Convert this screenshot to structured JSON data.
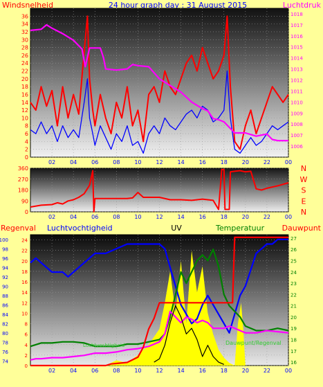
{
  "header": {
    "title": "24 hour graph day : 31 August 2015",
    "left_label": "Windsnelheid",
    "right_label": "Luchtdruk"
  },
  "panel3_labels": {
    "rain": "Regenval",
    "humidity": "Luchtvochtigheid",
    "uv": "UV",
    "temperature": "Temperatuur",
    "dewpoint": "Dauwpunt"
  },
  "overlay_labels": {
    "left": "Luchtvochtigheid",
    "right": "Dauwpunt/Regenval"
  },
  "colors": {
    "background": "#ffff99",
    "wind": "#ff0000",
    "gust_avg": "#0000ff",
    "pressure": "#ff00ff",
    "direction": "#ff0000",
    "humidity": "#0000ff",
    "temperature": "#008000",
    "dewpoint": "#ff00ff",
    "rain": "#ff0000",
    "uv": "#ffff00"
  },
  "chart_data": [
    {
      "type": "line",
      "x_ticks": [
        "02",
        "04",
        "06",
        "08",
        "10",
        "12",
        "14",
        "16",
        "18",
        "20",
        "22",
        "00"
      ],
      "left_axis": {
        "ylim": [
          0,
          38
        ],
        "ticks": [
          0,
          2,
          4,
          6,
          8,
          10,
          12,
          14,
          16,
          18,
          20,
          22,
          24,
          26,
          28,
          30,
          32,
          34,
          36
        ]
      },
      "right_axis": {
        "ylim": [
          1005,
          1018.5
        ],
        "ticks": [
          1006,
          1007,
          1008,
          1009,
          1010,
          1011,
          1012,
          1013,
          1014,
          1015,
          1016,
          1017,
          1018
        ]
      },
      "series": [
        {
          "key": "wind",
          "axis": "left",
          "x": [
            0,
            0.5,
            1,
            1.5,
            2,
            2.5,
            3,
            3.5,
            4,
            4.5,
            5,
            5.3,
            5.5,
            5.8,
            6,
            6.5,
            7,
            7.5,
            8,
            8.5,
            9,
            9.5,
            10,
            10.5,
            11,
            11.5,
            12,
            12.5,
            13,
            13.5,
            14,
            14.5,
            15,
            15.5,
            16,
            16.5,
            17,
            17.5,
            18,
            18.3,
            18.6,
            19,
            19.5,
            20,
            20.5,
            21,
            21.5,
            22,
            22.5,
            23,
            23.5,
            24
          ],
          "y": [
            14,
            12,
            18,
            13,
            17,
            8,
            18,
            10,
            16,
            11,
            27,
            36,
            20,
            12,
            8,
            16,
            10,
            6,
            14,
            10,
            18,
            8,
            12,
            4,
            16,
            18,
            14,
            22,
            18,
            16,
            20,
            24,
            26,
            22,
            28,
            24,
            20,
            22,
            26,
            36,
            18,
            4,
            2,
            8,
            12,
            6,
            10,
            14,
            18,
            16,
            14,
            16
          ]
        },
        {
          "key": "gust_avg",
          "axis": "left",
          "x": [
            0,
            0.5,
            1,
            1.5,
            2,
            2.5,
            3,
            3.5,
            4,
            4.5,
            5,
            5.3,
            5.5,
            5.8,
            6,
            6.5,
            7,
            7.5,
            8,
            8.5,
            9,
            9.5,
            10,
            10.5,
            11,
            11.5,
            12,
            12.5,
            13,
            13.5,
            14,
            14.5,
            15,
            15.5,
            16,
            16.5,
            17,
            17.5,
            18,
            18.3,
            18.6,
            19,
            19.5,
            20,
            20.5,
            21,
            21.5,
            22,
            22.5,
            23,
            23.5,
            24
          ],
          "y": [
            7,
            6,
            9,
            6,
            8,
            4,
            8,
            5,
            7,
            5,
            14,
            20,
            10,
            6,
            3,
            8,
            5,
            2,
            6,
            4,
            8,
            3,
            4,
            1,
            6,
            8,
            6,
            10,
            8,
            7,
            9,
            11,
            12,
            10,
            13,
            12,
            9,
            10,
            12,
            22,
            10,
            2,
            1,
            3,
            5,
            3,
            4,
            6,
            8,
            7,
            8,
            9
          ]
        },
        {
          "key": "pressure",
          "axis": "right",
          "x": [
            0,
            1,
            1.5,
            2,
            3,
            4,
            4.8,
            5.1,
            5.5,
            6.5,
            6.8,
            7,
            8,
            9,
            9.5,
            10,
            11,
            12,
            13,
            14,
            15,
            16,
            16.5,
            17,
            17.5,
            18,
            19,
            20,
            21,
            22,
            22.5,
            23,
            24
          ],
          "y": [
            1016.5,
            1016.6,
            1017,
            1016.7,
            1016.2,
            1015.6,
            1014.8,
            1013.2,
            1014.9,
            1014.9,
            1014,
            1013,
            1012.9,
            1013,
            1013.4,
            1013.3,
            1013.2,
            1012.1,
            1011.5,
            1010.9,
            1010,
            1009.4,
            1009.2,
            1008.5,
            1008.4,
            1008.2,
            1007.2,
            1007.2,
            1006.9,
            1007.1,
            1006.6,
            1006.5,
            1006.5
          ]
        }
      ]
    },
    {
      "type": "line",
      "x_ticks": [
        "02",
        "04",
        "06",
        "08",
        "10",
        "12",
        "14",
        "16",
        "18",
        "20",
        "22",
        "00"
      ],
      "ylim": [
        0,
        360
      ],
      "y_ticks": [
        0,
        90,
        180,
        270,
        360
      ],
      "right_labels": [
        "N",
        "W",
        "S",
        "E",
        "N"
      ],
      "series": [
        {
          "key": "direction",
          "x": [
            0,
            1,
            2,
            2.5,
            3,
            3.5,
            4,
            4.5,
            5,
            5.5,
            5.8,
            5.9,
            6,
            6.5,
            7,
            8,
            9,
            9.5,
            10,
            10.5,
            11,
            12,
            13,
            14,
            15,
            16,
            17,
            17.5,
            17.8,
            18,
            18.1,
            18.5,
            18.6,
            19,
            19.5,
            20,
            20.5,
            21,
            21.5,
            22,
            23,
            24
          ],
          "y": [
            40,
            55,
            60,
            75,
            65,
            90,
            100,
            120,
            150,
            220,
            340,
            0,
            110,
            110,
            110,
            110,
            110,
            115,
            160,
            120,
            120,
            120,
            100,
            100,
            95,
            105,
            95,
            20,
            350,
            350,
            20,
            20,
            330,
            335,
            340,
            330,
            335,
            190,
            180,
            195,
            215,
            240
          ]
        }
      ]
    },
    {
      "type": "line",
      "x_ticks": [
        "02",
        "04",
        "06",
        "08",
        "10",
        "12",
        "14",
        "16",
        "18",
        "20",
        "22",
        "00"
      ],
      "humidity_axis": {
        "ylim": [
          73,
          101
        ],
        "ticks": [
          74,
          76,
          78,
          80,
          82,
          84,
          86,
          88,
          90,
          92,
          94,
          96,
          98,
          100
        ]
      },
      "rain_axis": {
        "ylim": [
          0,
          25
        ],
        "ticks": [
          0,
          2,
          4,
          6,
          8,
          10,
          12,
          14,
          16,
          18,
          20,
          22,
          24
        ]
      },
      "temp_axis": {
        "ylim": [
          15.7,
          27.3
        ],
        "ticks": [
          16,
          17,
          18,
          19,
          20,
          21,
          22,
          23,
          24,
          25,
          26,
          27
        ]
      },
      "series": [
        {
          "key": "uv",
          "axis": "rain",
          "type": "area",
          "x": [
            7,
            8,
            9,
            10,
            11,
            12,
            12.5,
            13,
            13.5,
            14,
            14.5,
            15,
            15.5,
            16,
            16.5,
            17,
            17.5,
            18,
            18.5,
            19,
            19.5,
            19.8,
            20
          ],
          "y": [
            0,
            1,
            0.5,
            2,
            4,
            7,
            12,
            18,
            10,
            20,
            8,
            22,
            14,
            19,
            10,
            6,
            3,
            1.5,
            0.5,
            0,
            0,
            0,
            0
          ]
        },
        {
          "key": "uv_spike",
          "axis": "rain",
          "type": "area",
          "x": [
            19,
            19.3,
            19.6,
            19.8,
            20
          ],
          "y": [
            0,
            8,
            12,
            7,
            0
          ]
        },
        {
          "key": "humidity",
          "axis": "humidity",
          "x": [
            0,
            0.5,
            1,
            2,
            3,
            3.5,
            4,
            4.5,
            5,
            6,
            7,
            8,
            9,
            10,
            11,
            12,
            12.5,
            13,
            13.5,
            14,
            14.5,
            15,
            15.5,
            16,
            16.5,
            17,
            17.5,
            18,
            18.5,
            19,
            19.5,
            20,
            21,
            22,
            22.5,
            23,
            24
          ],
          "y": [
            95,
            96,
            95,
            93,
            93,
            92,
            93,
            94,
            95,
            97,
            97,
            98,
            99,
            99,
            99,
            99,
            98,
            94,
            90,
            86,
            84,
            82,
            83,
            86,
            88,
            86,
            84,
            82,
            80,
            84,
            88,
            90,
            97,
            99,
            99,
            100,
            100
          ]
        },
        {
          "key": "temperature",
          "axis": "temp",
          "x": [
            0,
            1,
            2,
            3,
            4,
            5,
            6,
            7,
            8,
            9,
            10,
            11,
            12,
            12.5,
            13,
            13.5,
            14,
            14.5,
            15,
            15.5,
            16,
            16.5,
            17,
            17.5,
            18,
            18.5,
            19,
            19.5,
            20,
            21,
            22,
            23,
            24
          ],
          "y": [
            17.4,
            17.7,
            17.7,
            17.8,
            17.8,
            17.7,
            17.4,
            17.4,
            17.4,
            17.6,
            17.6,
            17.8,
            18,
            18.5,
            20,
            22,
            24,
            23,
            24,
            25,
            25.5,
            25,
            26,
            24.5,
            22,
            21,
            20.5,
            20,
            19.2,
            18.8,
            18.8,
            19,
            18.8
          ]
        },
        {
          "key": "dewpoint",
          "axis": "temp",
          "x": [
            0,
            0.5,
            1,
            2,
            3,
            4,
            5,
            6,
            7,
            8,
            9,
            10,
            11,
            12,
            12.5,
            13,
            13.5,
            14,
            14.5,
            15,
            15.5,
            16,
            16.5,
            17,
            17.5,
            18,
            18.5,
            19,
            19.5,
            20,
            21,
            22,
            23,
            24
          ],
          "y": [
            16.2,
            16.3,
            16.3,
            16.4,
            16.4,
            16.5,
            16.6,
            16.8,
            16.8,
            16.9,
            17.1,
            17.2,
            17.4,
            17.8,
            18.5,
            20.5,
            20,
            19.5,
            20,
            19.8,
            19.5,
            19.7,
            19.5,
            19,
            19,
            19,
            19.2,
            19,
            18.8,
            18.6,
            18.6,
            18.8,
            18.7,
            18.6
          ]
        },
        {
          "key": "rain",
          "axis": "rain",
          "x": [
            0,
            2,
            4,
            5,
            6,
            7,
            7.5,
            8,
            9,
            10,
            10.5,
            11,
            11.5,
            12,
            13,
            14,
            15,
            16,
            17,
            17.5,
            18,
            18.5,
            18.8,
            19,
            19.5,
            20,
            24
          ],
          "y": [
            0,
            0,
            0,
            0,
            0,
            0,
            0.3,
            0.4,
            0.6,
            1.6,
            3.5,
            7,
            9,
            12,
            12,
            12,
            12,
            12,
            12,
            12,
            12,
            12,
            12,
            24.5,
            24.5,
            24.5,
            24.5
          ]
        },
        {
          "key": "temp_black",
          "axis": "temp",
          "x": [
            11.5,
            12,
            12.5,
            13,
            13.5,
            14,
            14.5,
            15,
            15.5,
            16,
            16.5,
            17,
            17.5,
            18
          ],
          "y": [
            16,
            16.3,
            17.5,
            19.5,
            21,
            20,
            18.5,
            19,
            18,
            16.5,
            17.5,
            16.5,
            16,
            15.8
          ]
        }
      ]
    }
  ]
}
